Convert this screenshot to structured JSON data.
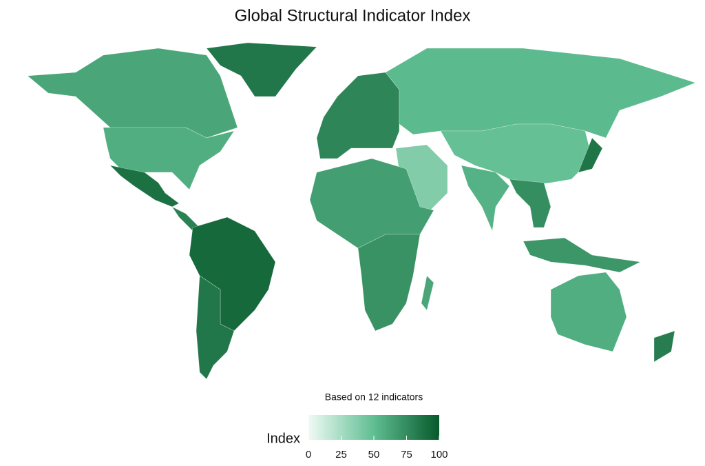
{
  "chart_data": {
    "type": "choropleth",
    "title": "Global Structural Indicator Index",
    "subtitle": "Based on 12 indicators",
    "legend_title": "Index",
    "colorbar": {
      "lim": [
        0,
        100
      ],
      "ticks": [
        0,
        25,
        50,
        75,
        100
      ],
      "colors": [
        "#effaf5",
        "#5fbe92",
        "#07592a"
      ]
    },
    "values": [
      85,
      62,
      58,
      88,
      80,
      92,
      85,
      78,
      52,
      38,
      48,
      56,
      74,
      70,
      86,
      66,
      72,
      62,
      58,
      82
    ]
  }
}
